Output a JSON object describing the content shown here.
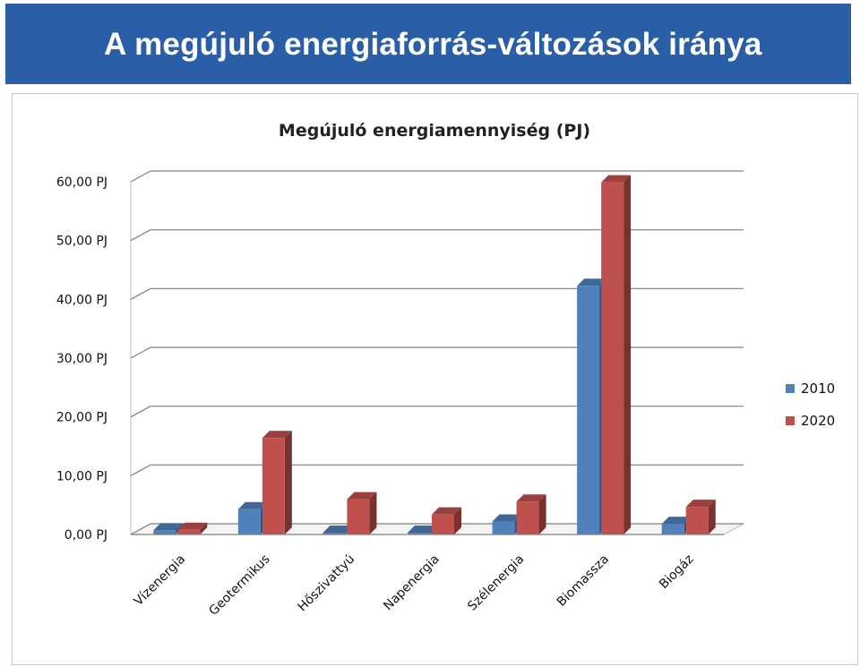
{
  "header": {
    "title": "A megújuló energiaforrás-változások iránya"
  },
  "colors": {
    "banner": "#2a5fa8",
    "series_2010": "#4f81bd",
    "series_2020": "#c0504d"
  },
  "chart_data": {
    "type": "bar",
    "title": "Megújuló energiamennyiség (PJ)",
    "xlabel": "",
    "ylabel": "",
    "categories": [
      "Vízenergia",
      "Geotermikus",
      "Hőszivattyú",
      "Napenergia",
      "Szélenergia",
      "Biomassza",
      "Biogáz"
    ],
    "series": [
      {
        "name": "2010",
        "values": [
          0.7,
          4.3,
          0.1,
          0.1,
          2.2,
          42.3,
          1.8
        ]
      },
      {
        "name": "2020",
        "values": [
          0.8,
          16.4,
          6.0,
          3.4,
          5.6,
          59.9,
          4.7
        ]
      }
    ],
    "ylim": [
      0,
      60
    ],
    "yticks": [
      "0,00 PJ",
      "10,00 PJ",
      "20,00 PJ",
      "30,00 PJ",
      "40,00 PJ",
      "50,00 PJ",
      "60,00 PJ"
    ],
    "grid": true,
    "legend": "right",
    "style": "3d-clustered-column"
  }
}
